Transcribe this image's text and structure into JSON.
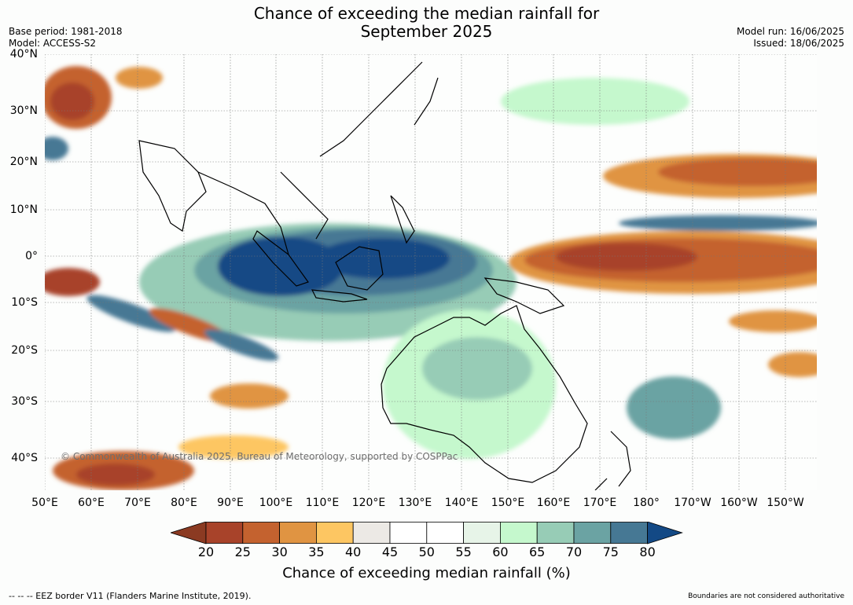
{
  "header": {
    "title_line1": "Chance of exceeding the median rainfall for",
    "title_line2": "September 2025",
    "base_period": "Base period: 1981-2018",
    "model": "Model: ACCESS-S2",
    "model_run": "Model run: 16/06/2025",
    "issued": "Issued: 18/06/2025"
  },
  "map": {
    "lat_labels": [
      "40°N",
      "30°N",
      "20°N",
      "10°N",
      "0°",
      "10°S",
      "20°S",
      "30°S",
      "40°S"
    ],
    "lon_labels": [
      "50°E",
      "60°E",
      "70°E",
      "80°E",
      "90°E",
      "100°E",
      "110°E",
      "120°E",
      "130°E",
      "140°E",
      "150°E",
      "160°E",
      "170°E",
      "180°",
      "170°W",
      "160°W",
      "150°W"
    ],
    "copyright": "© Commonwealth of Australia 2025, Bureau of Meteorology, supported by COSPPac",
    "colors": {
      "c20": "#a8432a",
      "c25": "#c4622f",
      "c30": "#e09442",
      "c35": "#fdc662",
      "c40": "#ece9e5",
      "c45": "#ffffff",
      "c55": "#e7f4e8",
      "c60": "#c5f8cd",
      "c65": "#97ccb6",
      "c70": "#6ba3a3",
      "c75": "#467894",
      "c80": "#134985",
      "land_line": "#000000",
      "border_line": "#8a8a8a"
    }
  },
  "colorbar": {
    "ticks": [
      "20",
      "25",
      "30",
      "35",
      "40",
      "45",
      "50",
      "55",
      "60",
      "65",
      "70",
      "75",
      "80"
    ],
    "label": "Chance of exceeding median rainfall (%)"
  },
  "footer": {
    "eez_note": "--  --  -- EEZ border V11 (Flanders Marine Institute, 2019).",
    "disclaimer": "Boundaries are not considered authoritative"
  }
}
